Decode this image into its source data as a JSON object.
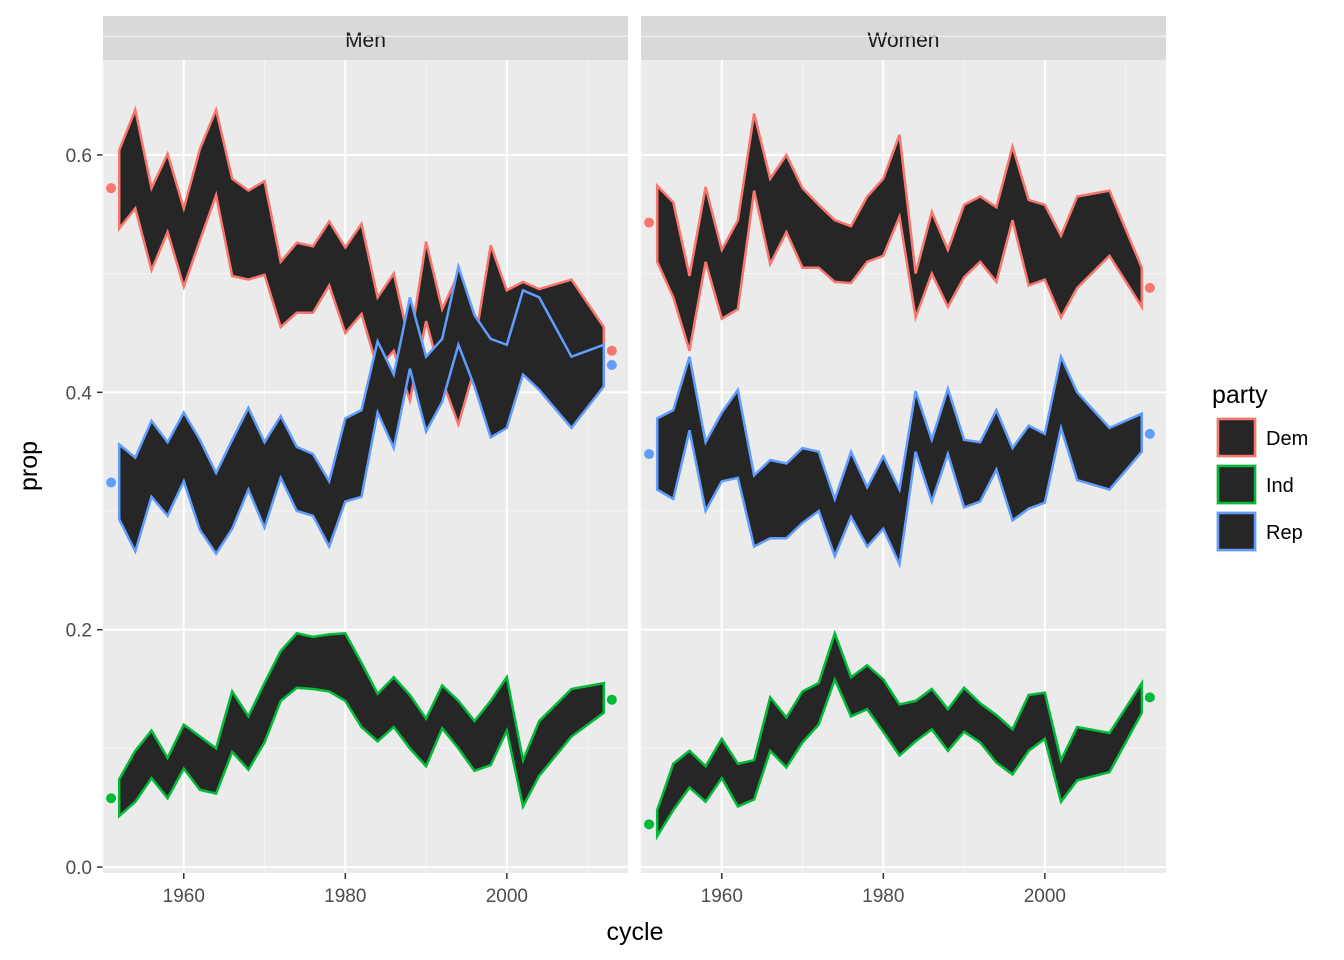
{
  "chart_data": {
    "type": "area",
    "xlabel": "cycle",
    "ylabel": "prop",
    "xlim": [
      1950,
      2015
    ],
    "ylim": [
      -0.005,
      0.68
    ],
    "x_ticks": [
      1960,
      1980,
      2000
    ],
    "x_tick_labels": [
      "1960",
      "1980",
      "2000"
    ],
    "y_ticks": [
      0.0,
      0.2,
      0.4,
      0.6
    ],
    "y_tick_labels": [
      "0.0",
      "0.2",
      "0.4",
      "0.6"
    ],
    "grid": true,
    "ribbon_fill": "#262626",
    "legend": {
      "title": "party",
      "placement": "right",
      "entries": [
        {
          "label": "Dem",
          "color": "#F8766D"
        },
        {
          "label": "Ind",
          "color": "#00BA38"
        },
        {
          "label": "Rep",
          "color": "#619CFF"
        }
      ]
    },
    "panels": [
      {
        "label": "Men",
        "series": [
          {
            "name": "Dem",
            "color": "#F8766D",
            "x": [
              1952,
              1954,
              1956,
              1958,
              1960,
              1962,
              1964,
              1966,
              1968,
              1970,
              1972,
              1974,
              1976,
              1978,
              1980,
              1982,
              1984,
              1986,
              1988,
              1990,
              1992,
              1994,
              1996,
              1998,
              2000,
              2002,
              2004,
              2008,
              2012
            ],
            "upper": [
              0.604,
              0.638,
              0.572,
              0.601,
              0.555,
              0.605,
              0.638,
              0.58,
              0.57,
              0.578,
              0.51,
              0.526,
              0.523,
              0.544,
              0.522,
              0.542,
              0.48,
              0.5,
              0.44,
              0.527,
              0.47,
              0.5,
              0.44,
              0.524,
              0.486,
              0.493,
              0.487,
              0.495,
              0.455
            ],
            "lower": [
              0.538,
              0.555,
              0.503,
              0.535,
              0.489,
              0.528,
              0.566,
              0.498,
              0.495,
              0.499,
              0.455,
              0.467,
              0.467,
              0.49,
              0.45,
              0.466,
              0.42,
              0.435,
              0.393,
              0.46,
              0.41,
              0.373,
              0.42,
              0.44,
              0.425,
              0.43,
              0.425,
              0.39,
              0.405
            ],
            "points": [
              {
                "x": 1951,
                "y": 0.572
              },
              {
                "x": 2013,
                "y": 0.435
              }
            ]
          },
          {
            "name": "Ind",
            "color": "#00BA38",
            "x": [
              1952,
              1954,
              1956,
              1958,
              1960,
              1962,
              1964,
              1966,
              1968,
              1970,
              1972,
              1974,
              1976,
              1978,
              1980,
              1982,
              1984,
              1986,
              1988,
              1990,
              1992,
              1994,
              1996,
              1998,
              2000,
              2002,
              2004,
              2008,
              2012
            ],
            "upper": [
              0.074,
              0.098,
              0.115,
              0.092,
              0.12,
              0.11,
              0.1,
              0.148,
              0.127,
              0.155,
              0.182,
              0.197,
              0.194,
              0.196,
              0.197,
              0.172,
              0.146,
              0.16,
              0.145,
              0.125,
              0.153,
              0.14,
              0.123,
              0.14,
              0.16,
              0.09,
              0.123,
              0.15,
              0.155
            ],
            "lower": [
              0.043,
              0.055,
              0.075,
              0.058,
              0.083,
              0.065,
              0.062,
              0.097,
              0.082,
              0.105,
              0.14,
              0.151,
              0.15,
              0.148,
              0.14,
              0.118,
              0.106,
              0.118,
              0.1,
              0.085,
              0.117,
              0.1,
              0.081,
              0.086,
              0.115,
              0.051,
              0.077,
              0.11,
              0.13
            ],
            "points": [
              {
                "x": 1951,
                "y": 0.058
              },
              {
                "x": 2013,
                "y": 0.141
              }
            ]
          },
          {
            "name": "Rep",
            "color": "#619CFF",
            "x": [
              1952,
              1954,
              1956,
              1958,
              1960,
              1962,
              1964,
              1966,
              1968,
              1970,
              1972,
              1974,
              1976,
              1978,
              1980,
              1982,
              1984,
              1986,
              1988,
              1990,
              1992,
              1994,
              1996,
              1998,
              2000,
              2002,
              2004,
              2008,
              2012
            ],
            "upper": [
              0.356,
              0.345,
              0.376,
              0.358,
              0.383,
              0.36,
              0.332,
              0.36,
              0.387,
              0.358,
              0.38,
              0.354,
              0.348,
              0.325,
              0.378,
              0.385,
              0.443,
              0.415,
              0.48,
              0.43,
              0.445,
              0.506,
              0.465,
              0.445,
              0.44,
              0.486,
              0.48,
              0.43,
              0.44
            ],
            "lower": [
              0.293,
              0.266,
              0.312,
              0.296,
              0.325,
              0.284,
              0.264,
              0.285,
              0.318,
              0.286,
              0.328,
              0.3,
              0.296,
              0.27,
              0.308,
              0.312,
              0.383,
              0.353,
              0.42,
              0.367,
              0.392,
              0.44,
              0.405,
              0.362,
              0.37,
              0.415,
              0.402,
              0.37,
              0.405
            ],
            "points": [
              {
                "x": 1951,
                "y": 0.324
              },
              {
                "x": 2013,
                "y": 0.423
              }
            ]
          }
        ]
      },
      {
        "label": "Women",
        "series": [
          {
            "name": "Dem",
            "color": "#F8766D",
            "x": [
              1952,
              1954,
              1956,
              1958,
              1960,
              1962,
              1964,
              1966,
              1968,
              1970,
              1972,
              1974,
              1976,
              1978,
              1980,
              1982,
              1984,
              1986,
              1988,
              1990,
              1992,
              1994,
              1996,
              1998,
              2000,
              2002,
              2004,
              2008,
              2012
            ],
            "upper": [
              0.574,
              0.56,
              0.498,
              0.573,
              0.52,
              0.545,
              0.635,
              0.58,
              0.6,
              0.572,
              0.558,
              0.545,
              0.54,
              0.565,
              0.58,
              0.617,
              0.5,
              0.552,
              0.52,
              0.558,
              0.565,
              0.556,
              0.607,
              0.562,
              0.558,
              0.532,
              0.565,
              0.57,
              0.505
            ],
            "lower": [
              0.51,
              0.48,
              0.435,
              0.51,
              0.462,
              0.47,
              0.57,
              0.508,
              0.535,
              0.505,
              0.505,
              0.493,
              0.492,
              0.51,
              0.515,
              0.548,
              0.463,
              0.5,
              0.472,
              0.497,
              0.51,
              0.493,
              0.545,
              0.49,
              0.495,
              0.463,
              0.488,
              0.515,
              0.472
            ],
            "points": [
              {
                "x": 1951,
                "y": 0.543
              },
              {
                "x": 2013,
                "y": 0.488
              }
            ]
          },
          {
            "name": "Ind",
            "color": "#00BA38",
            "x": [
              1952,
              1954,
              1956,
              1958,
              1960,
              1962,
              1964,
              1966,
              1968,
              1970,
              1972,
              1974,
              1976,
              1978,
              1980,
              1982,
              1984,
              1986,
              1988,
              1990,
              1992,
              1994,
              1996,
              1998,
              2000,
              2002,
              2004,
              2008,
              2012
            ],
            "upper": [
              0.048,
              0.087,
              0.098,
              0.085,
              0.108,
              0.087,
              0.09,
              0.143,
              0.126,
              0.148,
              0.155,
              0.197,
              0.16,
              0.17,
              0.158,
              0.137,
              0.14,
              0.15,
              0.133,
              0.151,
              0.138,
              0.128,
              0.116,
              0.145,
              0.147,
              0.09,
              0.118,
              0.113,
              0.155
            ],
            "lower": [
              0.026,
              0.048,
              0.067,
              0.055,
              0.075,
              0.051,
              0.057,
              0.098,
              0.084,
              0.105,
              0.12,
              0.158,
              0.127,
              0.133,
              0.114,
              0.094,
              0.106,
              0.116,
              0.098,
              0.114,
              0.105,
              0.088,
              0.078,
              0.098,
              0.108,
              0.055,
              0.073,
              0.08,
              0.13
            ],
            "points": [
              {
                "x": 1951,
                "y": 0.036
              },
              {
                "x": 2013,
                "y": 0.143
              }
            ]
          },
          {
            "name": "Rep",
            "color": "#619CFF",
            "x": [
              1952,
              1954,
              1956,
              1958,
              1960,
              1962,
              1964,
              1966,
              1968,
              1970,
              1972,
              1974,
              1976,
              1978,
              1980,
              1982,
              1984,
              1986,
              1988,
              1990,
              1992,
              1994,
              1996,
              1998,
              2000,
              2002,
              2004,
              2008,
              2012
            ],
            "upper": [
              0.378,
              0.385,
              0.43,
              0.358,
              0.383,
              0.402,
              0.33,
              0.343,
              0.34,
              0.353,
              0.35,
              0.31,
              0.35,
              0.32,
              0.346,
              0.318,
              0.401,
              0.36,
              0.403,
              0.36,
              0.358,
              0.385,
              0.353,
              0.372,
              0.365,
              0.43,
              0.4,
              0.37,
              0.382
            ],
            "lower": [
              0.318,
              0.31,
              0.368,
              0.3,
              0.325,
              0.328,
              0.27,
              0.277,
              0.277,
              0.29,
              0.3,
              0.262,
              0.295,
              0.27,
              0.285,
              0.255,
              0.35,
              0.308,
              0.348,
              0.303,
              0.308,
              0.335,
              0.292,
              0.302,
              0.307,
              0.37,
              0.326,
              0.318,
              0.35
            ],
            "points": [
              {
                "x": 1951,
                "y": 0.348
              },
              {
                "x": 2013,
                "y": 0.365
              }
            ]
          }
        ]
      }
    ]
  }
}
